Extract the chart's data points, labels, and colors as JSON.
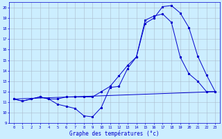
{
  "title": "Graphe des températures (°c)",
  "bg_color": "#cceeff",
  "grid_color": "#aabbcc",
  "line_color": "#0000cc",
  "xlim": [
    -0.5,
    23.5
  ],
  "ylim": [
    9.0,
    20.5
  ],
  "yticks": [
    9,
    10,
    11,
    12,
    13,
    14,
    15,
    16,
    17,
    18,
    19,
    20
  ],
  "xticks": [
    0,
    1,
    2,
    3,
    4,
    5,
    6,
    7,
    8,
    9,
    10,
    11,
    12,
    13,
    14,
    15,
    16,
    17,
    18,
    19,
    20,
    21,
    22,
    23
  ],
  "series1_x": [
    0,
    1,
    2,
    3,
    4,
    5,
    6,
    7,
    8,
    9,
    10,
    11,
    12,
    13,
    14,
    15,
    16,
    17,
    18,
    19,
    20,
    21,
    22,
    23
  ],
  "series1_y": [
    11.3,
    11.1,
    11.3,
    11.5,
    11.3,
    10.8,
    10.6,
    10.4,
    9.7,
    9.6,
    10.5,
    12.4,
    12.5,
    14.2,
    15.3,
    18.8,
    19.2,
    19.4,
    18.6,
    15.3,
    13.7,
    13.0,
    12.0,
    12.0
  ],
  "series2_x": [
    0,
    1,
    2,
    3,
    4,
    5,
    6,
    7,
    8,
    9,
    10,
    11,
    12,
    13,
    14,
    15,
    16,
    17,
    18,
    19,
    20,
    21,
    22,
    23
  ],
  "series2_y": [
    11.3,
    11.1,
    11.3,
    11.5,
    11.3,
    11.3,
    11.5,
    11.5,
    11.5,
    11.5,
    12.0,
    12.5,
    13.5,
    14.5,
    15.3,
    18.5,
    19.0,
    20.1,
    20.2,
    19.5,
    18.1,
    15.4,
    13.6,
    12.0
  ],
  "series3_x": [
    0,
    23
  ],
  "series3_y": [
    11.3,
    12.0
  ],
  "figwidth": 3.2,
  "figheight": 2.0,
  "dpi": 100
}
